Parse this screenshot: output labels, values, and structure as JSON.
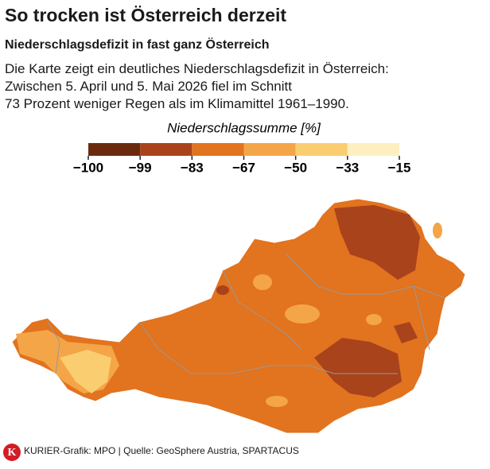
{
  "title": "So trocken ist Österreich derzeit",
  "subtitle": "Niederschlagsdefizit in fast ganz Österreich",
  "description": [
    "Die Karte zeigt ein deutliches Niederschlagsdefizit in Österreich:",
    "Zwischen 5. April und 5. Mai 2026 fiel im Schnitt",
    "73 Prozent weniger Regen als im Klimamittel 1961–1990."
  ],
  "legend": {
    "title": "Niederschlagssumme [%]",
    "ticks": [
      {
        "value": -100,
        "label": "−100"
      },
      {
        "value": -99,
        "label": "−99"
      },
      {
        "value": -83,
        "label": "−83"
      },
      {
        "value": -67,
        "label": "−67"
      },
      {
        "value": -50,
        "label": "−50"
      },
      {
        "value": -33,
        "label": "−33"
      },
      {
        "value": -15,
        "label": "−15"
      }
    ],
    "colors": [
      "#6b2a0e",
      "#a8431c",
      "#e2731f",
      "#f4a548",
      "#fbcd71",
      "#fdefc0"
    ]
  },
  "logo": "K",
  "footer": "KURIER-Grafik: MPO | Quelle: GeoSphere Austria, SPARTACUS"
}
